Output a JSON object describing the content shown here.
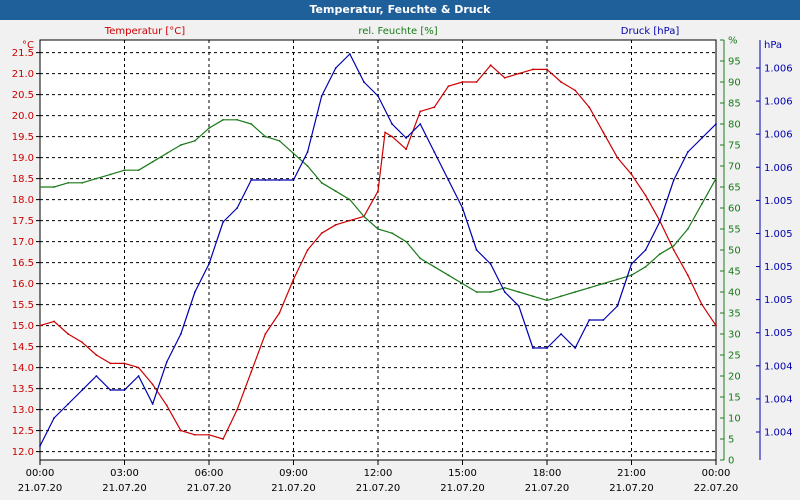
{
  "window": {
    "title": "Temperatur, Feuchte & Druck"
  },
  "colors": {
    "temperature": "#cc0000",
    "humidity": "#1a7a1a",
    "pressure": "#0000b0",
    "titlebar": "#1f5f9a"
  },
  "chart_data": {
    "type": "line",
    "title": "Temperatur, Feuchte & Druck",
    "grid": true,
    "xlabel": "",
    "x_ticks": [
      {
        "hours": 0,
        "time": "00:00",
        "date": "21.07.20"
      },
      {
        "hours": 3,
        "time": "03:00",
        "date": "21.07.20"
      },
      {
        "hours": 6,
        "time": "06:00",
        "date": "21.07.20"
      },
      {
        "hours": 9,
        "time": "09:00",
        "date": "21.07.20"
      },
      {
        "hours": 12,
        "time": "12:00",
        "date": "21.07.20"
      },
      {
        "hours": 15,
        "time": "15:00",
        "date": "21.07.20"
      },
      {
        "hours": 18,
        "time": "18:00",
        "date": "21.07.20"
      },
      {
        "hours": 21,
        "time": "21:00",
        "date": "21.07.20"
      },
      {
        "hours": 24,
        "time": "00:00",
        "date": "22.07.20"
      }
    ],
    "x_range_hours": [
      0,
      24
    ],
    "axes": {
      "temperature": {
        "label": "Temperatur [°C]",
        "unit": "°C",
        "range": [
          11.8,
          21.8
        ],
        "ticks": [
          "12.0",
          "12.5",
          "13.0",
          "13.5",
          "14.0",
          "14.5",
          "15.0",
          "15.5",
          "16.0",
          "16.5",
          "17.0",
          "17.5",
          "18.0",
          "18.5",
          "19.0",
          "19.5",
          "20.0",
          "20.5",
          "21.0",
          "21.5"
        ]
      },
      "humidity": {
        "label": "rel. Feuchte [%]",
        "unit": "%",
        "range": [
          0,
          100
        ],
        "ticks": [
          "0",
          "5",
          "10",
          "15",
          "20",
          "25",
          "30",
          "35",
          "40",
          "45",
          "50",
          "55",
          "60",
          "65",
          "70",
          "75",
          "80",
          "85",
          "90",
          "95",
          "%"
        ]
      },
      "pressure": {
        "label": "Druck [hPa]",
        "unit": "hPa",
        "range": [
          1003.8,
          1006.8
        ],
        "ticks": [
          "1.004",
          "1.004",
          "1.004",
          "1.005",
          "1.005",
          "1.005",
          "1.005",
          "1.005",
          "1.006",
          "1.006",
          "1.006",
          "1.006"
        ]
      }
    },
    "series": [
      {
        "name": "Temperatur [°C]",
        "axis": "temperature",
        "color": "#cc0000",
        "x": [
          0,
          0.5,
          1,
          1.5,
          2,
          2.5,
          3,
          3.5,
          4,
          4.5,
          5,
          5.5,
          6,
          6.5,
          7,
          7.5,
          8,
          8.5,
          9,
          9.5,
          10,
          10.5,
          11,
          11.5,
          12,
          12.25,
          12.5,
          13,
          13.5,
          14,
          14.5,
          15,
          15.5,
          16,
          16.5,
          17,
          17.5,
          18,
          18.5,
          19,
          19.5,
          20,
          20.5,
          21,
          21.5,
          22,
          22.5,
          23,
          23.5,
          24
        ],
        "values": [
          15.0,
          15.1,
          14.8,
          14.6,
          14.3,
          14.1,
          14.1,
          14.0,
          13.6,
          13.1,
          12.5,
          12.4,
          12.4,
          12.3,
          13.0,
          13.9,
          14.8,
          15.3,
          16.1,
          16.8,
          17.2,
          17.4,
          17.5,
          17.6,
          18.2,
          19.6,
          19.5,
          19.2,
          20.1,
          20.2,
          20.7,
          20.8,
          20.8,
          21.2,
          20.9,
          21.0,
          21.1,
          21.1,
          20.8,
          20.6,
          20.2,
          19.6,
          19.0,
          18.6,
          18.1,
          17.5,
          16.8,
          16.2,
          15.5,
          15.0
        ]
      },
      {
        "name": "rel. Feuchte [%]",
        "axis": "humidity",
        "color": "#1a7a1a",
        "x": [
          0,
          0.5,
          1,
          1.5,
          2,
          2.5,
          3,
          3.5,
          4,
          4.5,
          5,
          5.5,
          6,
          6.5,
          7,
          7.5,
          8,
          8.5,
          9,
          9.5,
          10,
          10.5,
          11,
          11.5,
          12,
          12.5,
          13,
          13.5,
          14,
          14.5,
          15,
          15.5,
          16,
          16.5,
          17,
          17.5,
          18,
          18.5,
          19,
          19.5,
          20,
          20.5,
          21,
          21.5,
          22,
          22.5,
          23,
          23.5,
          24
        ],
        "values": [
          65,
          65,
          66,
          66,
          67,
          68,
          69,
          69,
          71,
          73,
          75,
          76,
          79,
          81,
          81,
          80,
          77,
          76,
          73,
          70,
          66,
          64,
          62,
          58,
          55,
          54,
          52,
          48,
          46,
          44,
          42,
          40,
          40,
          41,
          40,
          39,
          38,
          39,
          40,
          41,
          42,
          43,
          44,
          46,
          49,
          51,
          55,
          61,
          67
        ]
      },
      {
        "name": "Druck [hPa]",
        "axis": "pressure",
        "color": "#0000b0",
        "x": [
          0,
          0.5,
          1,
          1.5,
          2,
          2.5,
          3,
          3.5,
          4,
          4.5,
          5,
          5.5,
          6,
          6.5,
          7,
          7.5,
          8,
          8.5,
          9,
          9.5,
          10,
          10.5,
          11,
          11.5,
          12,
          12.5,
          13,
          13.5,
          14,
          14.5,
          15,
          15.5,
          16,
          16.5,
          17,
          17.5,
          18,
          18.5,
          19,
          19.5,
          20,
          20.5,
          21,
          21.5,
          22,
          22.5,
          23,
          23.5,
          24
        ],
        "values": [
          1003.9,
          1004.1,
          1004.2,
          1004.3,
          1004.4,
          1004.3,
          1004.3,
          1004.4,
          1004.2,
          1004.5,
          1004.7,
          1005.0,
          1005.2,
          1005.5,
          1005.6,
          1005.8,
          1005.8,
          1005.8,
          1005.8,
          1006.0,
          1006.4,
          1006.6,
          1006.7,
          1006.5,
          1006.4,
          1006.2,
          1006.1,
          1006.2,
          1006.0,
          1005.8,
          1005.6,
          1005.3,
          1005.2,
          1005.0,
          1004.9,
          1004.6,
          1004.6,
          1004.7,
          1004.6,
          1004.8,
          1004.8,
          1004.9,
          1005.2,
          1005.3,
          1005.5,
          1005.8,
          1006.0,
          1006.1,
          1006.2
        ]
      }
    ]
  }
}
